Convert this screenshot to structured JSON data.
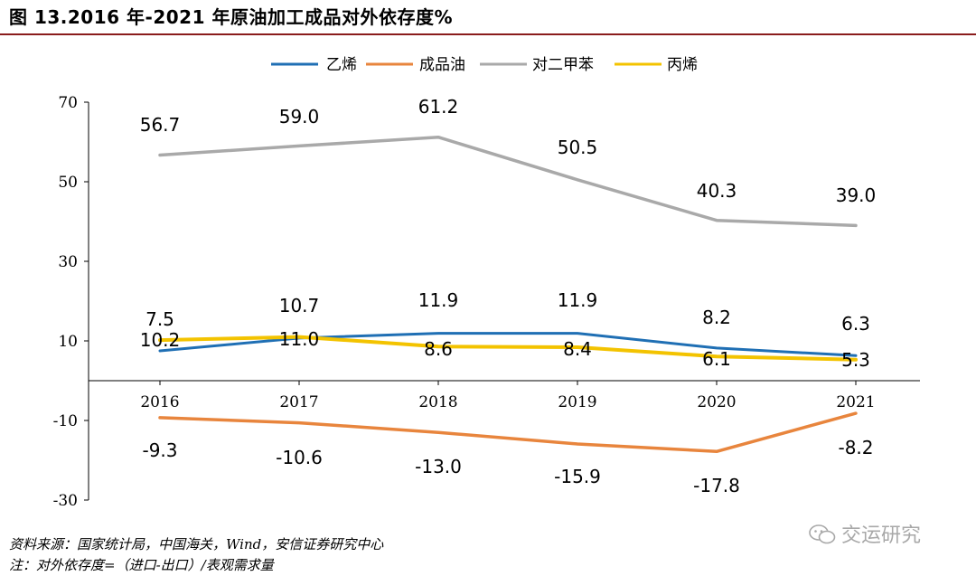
{
  "title": "图 13.2016 年-2021 年原油加工成品对外依存度%",
  "source_line": "资料来源：国家统计局，中国海关，Wind，安信证券研究中心",
  "note_line": "注：对外依存度=（进口-出口）/表观需求量",
  "watermark": "交运研究",
  "colors": {
    "title_rule": "#8a1c1c"
  },
  "chart_data": {
    "type": "line",
    "categories": [
      "2016",
      "2017",
      "2018",
      "2019",
      "2020",
      "2021"
    ],
    "ylim": [
      -30,
      70
    ],
    "yticks": [
      -30,
      -10,
      10,
      30,
      50,
      70
    ],
    "grid": false,
    "legend_position": "top-center",
    "series": [
      {
        "name": "乙烯",
        "color": "#1f6fb4",
        "values": [
          7.5,
          10.7,
          11.9,
          11.9,
          8.2,
          6.3
        ]
      },
      {
        "name": "成品油",
        "color": "#e8853d",
        "values": [
          -9.3,
          -10.6,
          -13.0,
          -15.9,
          -17.8,
          -8.2
        ]
      },
      {
        "name": "对二甲苯",
        "color": "#a9a9a9",
        "values": [
          56.7,
          59.0,
          61.2,
          50.5,
          40.3,
          39.0
        ]
      },
      {
        "name": "丙烯",
        "color": "#f3c300",
        "values": [
          10.2,
          11.0,
          8.6,
          8.4,
          6.1,
          5.3
        ]
      }
    ],
    "data_labels": {
      "乙烯": [
        "7.5",
        "10.7",
        "11.9",
        "11.9",
        "8.2",
        "6.3"
      ],
      "成品油": [
        "-9.3",
        "-10.6",
        "-13.0",
        "-15.9",
        "-17.8",
        "-8.2"
      ],
      "对二甲苯": [
        "56.7",
        "59.0",
        "61.2",
        "50.5",
        "40.3",
        "39.0"
      ],
      "丙烯": [
        "10.2",
        "11.0",
        "8.6",
        "8.4",
        "6.1",
        "5.3"
      ]
    }
  }
}
